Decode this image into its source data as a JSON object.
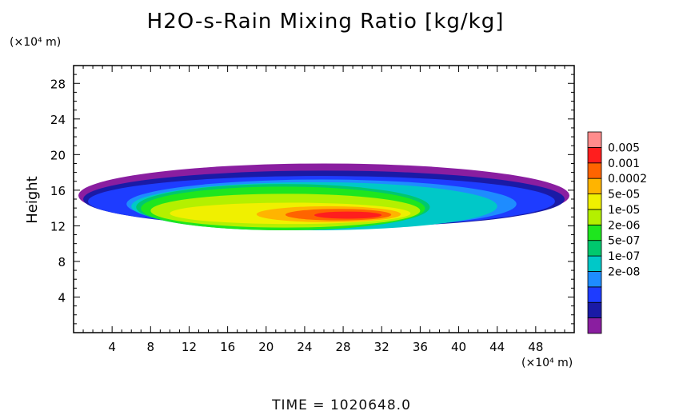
{
  "chart_data": {
    "type": "heatmap",
    "title": "H2O-s-Rain Mixing Ratio [kg/kg]",
    "ylabel": "Height",
    "xlabel": "",
    "x_unit": "(×10⁴ m)",
    "y_unit": "(×10⁴ m)",
    "xlim": [
      0,
      52
    ],
    "ylim": [
      0,
      30
    ],
    "x_ticks": [
      "4",
      "8",
      "12",
      "16",
      "20",
      "24",
      "28",
      "32",
      "36",
      "40",
      "44",
      "48"
    ],
    "y_ticks": [
      "4",
      "8",
      "12",
      "16",
      "20",
      "24",
      "28"
    ],
    "grid": false,
    "colorbar": {
      "labels": [
        "0.005",
        "0.001",
        "0.0002",
        "5e-05",
        "1e-05",
        "2e-06",
        "5e-07",
        "1e-07",
        "2e-08"
      ],
      "colors": [
        "#8a1ea0",
        "#1a1aa6",
        "#1e3cff",
        "#1e8cff",
        "#00c8c8",
        "#00c86e",
        "#1ee61e",
        "#b4f000",
        "#f0f000",
        "#ffb400",
        "#ff6400",
        "#ff1e1e",
        "#ff8c8c"
      ]
    },
    "regions": [
      {
        "level": 0,
        "x": [
          0.5,
          51.5
        ],
        "y": [
          11.8,
          19.0
        ]
      },
      {
        "level": 1,
        "x": [
          1.0,
          51.0
        ],
        "y": [
          11.8,
          18.2
        ]
      },
      {
        "level": 2,
        "x": [
          1.5,
          50.0
        ],
        "y": [
          11.9,
          17.6
        ]
      },
      {
        "level": 3,
        "x": [
          5.5,
          46.0
        ],
        "y": [
          11.7,
          17.2
        ]
      },
      {
        "level": 4,
        "x": [
          6.0,
          44.0
        ],
        "y": [
          11.5,
          16.9
        ]
      },
      {
        "level": 5,
        "x": [
          6.5,
          37.0
        ],
        "y": [
          11.5,
          16.7
        ]
      },
      {
        "level": 6,
        "x": [
          7.0,
          36.5
        ],
        "y": [
          11.5,
          16.4
        ]
      },
      {
        "level": 7,
        "x": [
          8.0,
          36.0
        ],
        "y": [
          11.8,
          15.6
        ]
      },
      {
        "level": 8,
        "x": [
          10.0,
          35.0
        ],
        "y": [
          12.2,
          14.6
        ]
      },
      {
        "level": 9,
        "x": [
          19.0,
          34.0
        ],
        "y": [
          12.4,
          14.2
        ]
      },
      {
        "level": 10,
        "x": [
          22.0,
          33.0
        ],
        "y": [
          12.6,
          13.9
        ]
      },
      {
        "level": 11,
        "x": [
          25.0,
          32.0
        ],
        "y": [
          12.8,
          13.6
        ]
      }
    ]
  },
  "footer": {
    "label": "TIME  =  1020648.0"
  }
}
